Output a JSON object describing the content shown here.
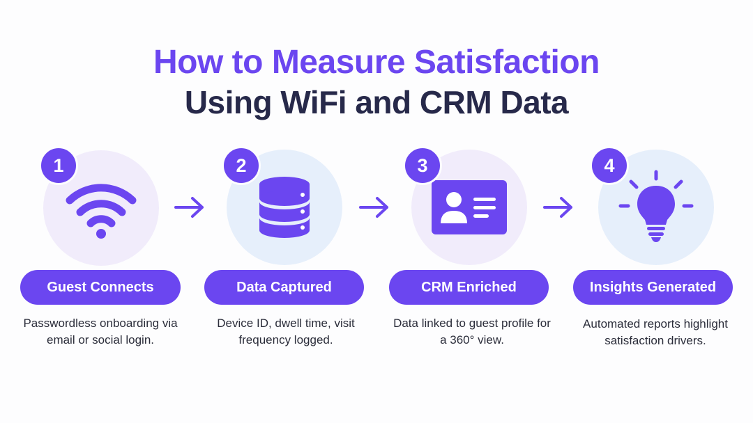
{
  "title": {
    "line1": "How to Measure Satisfaction",
    "line2": "Using WiFi and CRM Data"
  },
  "colors": {
    "accent": "#6b46f0",
    "title_dark": "#27294a",
    "circle_lavender": "#f1ecfb",
    "circle_blue": "#e6effb"
  },
  "steps": [
    {
      "number": "1",
      "label": "Guest Connects",
      "icon": "wifi-icon",
      "description": "Passwordless onboarding via email or social login."
    },
    {
      "number": "2",
      "label": "Data Captured",
      "icon": "database-icon",
      "description": "Device ID, dwell time, visit frequency logged."
    },
    {
      "number": "3",
      "label": "CRM Enriched",
      "icon": "id-card-icon",
      "description": "Data linked to guest profile for a 360° view."
    },
    {
      "number": "4",
      "label": "Insights Generated",
      "icon": "lightbulb-icon",
      "description": "Automated reports highlight satisfaction drivers."
    }
  ]
}
